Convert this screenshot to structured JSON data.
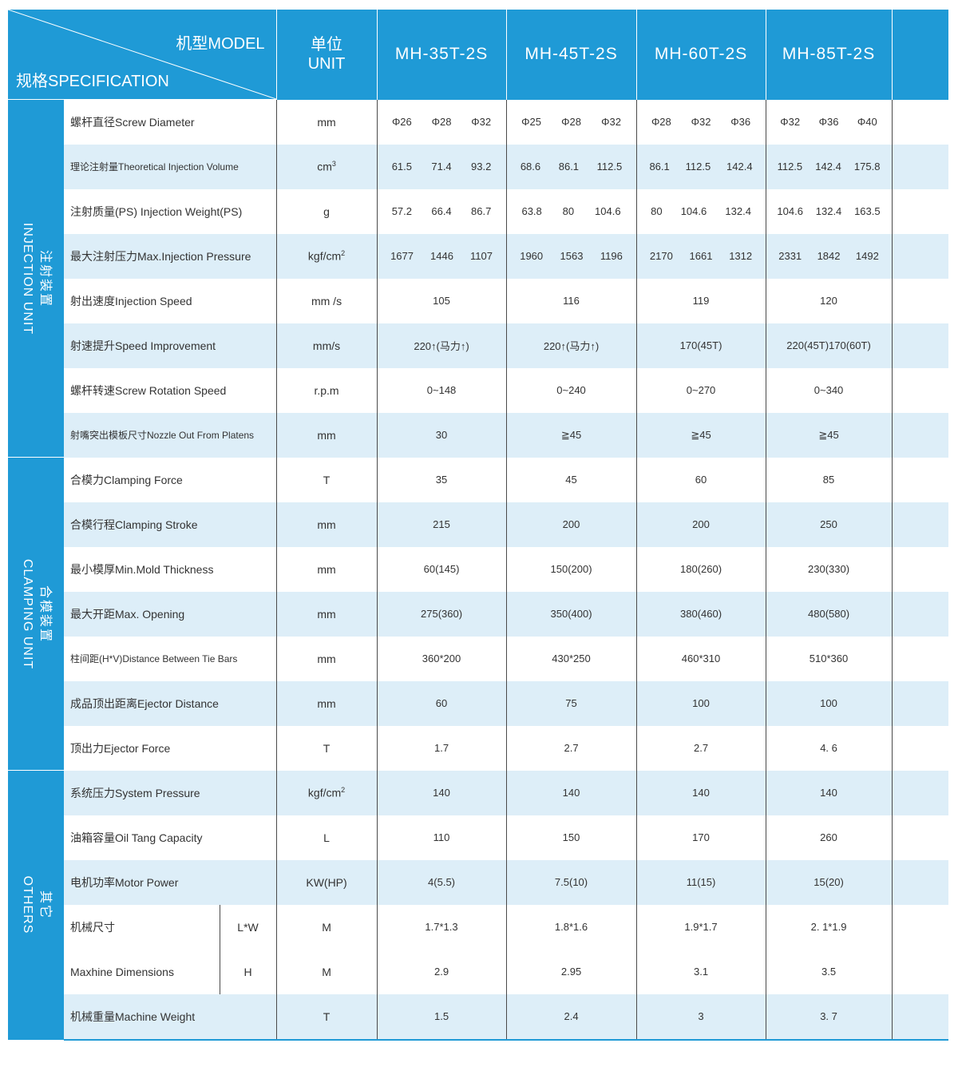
{
  "header": {
    "model_label": "机型MODEL",
    "spec_label": "规格SPECIFICATION",
    "unit_zh": "单位",
    "unit_en": "UNIT",
    "models": [
      "MH-35T-2S",
      "MH-45T-2S",
      "MH-60T-2S",
      "MH-85T-2S"
    ]
  },
  "sections": {
    "injection": {
      "zh": "注射装置",
      "en": "INJECTION UNIT"
    },
    "clamping": {
      "zh": "合模装置",
      "en": "CLAMPING UNIT"
    },
    "others": {
      "zh": "其它",
      "en": "OTHERS"
    }
  },
  "rows": {
    "screw_diameter": {
      "label": "螺杆直径Screw Diameter",
      "unit": "mm",
      "values": [
        [
          "Φ26",
          "Φ28",
          "Φ32"
        ],
        [
          "Φ25",
          "Φ28",
          "Φ32"
        ],
        [
          "Φ28",
          "Φ32",
          "Φ36"
        ],
        [
          "Φ32",
          "Φ36",
          "Φ40"
        ]
      ]
    },
    "injection_volume": {
      "label": "理论注射量Theoretical Injection Volume",
      "unit": "cm",
      "unit_sup": "3",
      "values": [
        [
          "61.5",
          "71.4",
          "93.2"
        ],
        [
          "68.6",
          "86.1",
          "112.5"
        ],
        [
          "86.1",
          "112.5",
          "142.4"
        ],
        [
          "112.5",
          "142.4",
          "175.8"
        ]
      ]
    },
    "injection_weight": {
      "label": "注射质量(PS) Injection Weight(PS)",
      "unit": "g",
      "values": [
        [
          "57.2",
          "66.4",
          "86.7"
        ],
        [
          "63.8",
          "80",
          "104.6"
        ],
        [
          "80",
          "104.6",
          "132.4"
        ],
        [
          "104.6",
          "132.4",
          "163.5"
        ]
      ]
    },
    "injection_pressure": {
      "label": "最大注射压力Max.Injection Pressure",
      "unit": "kgf/cm",
      "unit_sup": "2",
      "values": [
        [
          "1677",
          "1446",
          "1107"
        ],
        [
          "1960",
          "1563",
          "1196"
        ],
        [
          "2170",
          "1661",
          "1312"
        ],
        [
          "2331",
          "1842",
          "1492"
        ]
      ]
    },
    "injection_speed": {
      "label": "射出速度Injection Speed",
      "unit": "mm /s",
      "values": [
        "105",
        "116",
        "119",
        "120"
      ]
    },
    "speed_improvement": {
      "label": "射速提升Speed Improvement",
      "unit": "mm/s",
      "values": [
        "220↑(马力↑)",
        "220↑(马力↑)",
        "170(45T)",
        "220(45T)170(60T)"
      ]
    },
    "screw_rotation": {
      "label": "螺杆转速Screw Rotation Speed",
      "unit": "r.p.m",
      "values": [
        "0~148",
        "0~240",
        "0~270",
        "0~340"
      ]
    },
    "nozzle_out": {
      "label": "射嘴突出模板尺寸Nozzle Out From Platens",
      "unit": "mm",
      "values": [
        "30",
        "≧45",
        "≧45",
        "≧45"
      ]
    },
    "clamping_force": {
      "label": "合模力Clamping Force",
      "unit": "T",
      "values": [
        "35",
        "45",
        "60",
        "85"
      ]
    },
    "clamping_stroke": {
      "label": "合模行程Clamping Stroke",
      "unit": "mm",
      "values": [
        "215",
        "200",
        "200",
        "250"
      ]
    },
    "mold_thickness": {
      "label": "最小模厚Min.Mold Thickness",
      "unit": "mm",
      "values": [
        "60(145)",
        "150(200)",
        "180(260)",
        "230(330)"
      ]
    },
    "max_opening": {
      "label": "最大开距Max. Opening",
      "unit": "mm",
      "values": [
        "275(360)",
        "350(400)",
        "380(460)",
        "480(580)"
      ]
    },
    "tie_bars": {
      "label": "柱间距(H*V)Distance Between Tie Bars",
      "unit": "mm",
      "values": [
        "360*200",
        "430*250",
        "460*310",
        "510*360"
      ]
    },
    "ejector_distance": {
      "label": "成品顶出距离Ejector Distance",
      "unit": "mm",
      "values": [
        "60",
        "75",
        "100",
        "100"
      ]
    },
    "ejector_force": {
      "label": "顶出力Ejector Force",
      "unit": "T",
      "values": [
        "1.7",
        "2.7",
        "2.7",
        "4. 6"
      ]
    },
    "system_pressure": {
      "label": "系统压力System Pressure",
      "unit": "kgf/cm",
      "unit_sup": "2",
      "values": [
        "140",
        "140",
        "140",
        "140"
      ]
    },
    "oil_tank": {
      "label": "油箱容量Oil Tang Capacity",
      "unit": "L",
      "values": [
        "110",
        "150",
        "170",
        "260"
      ]
    },
    "motor_power": {
      "label": "电机功率Motor Power",
      "unit": "KW(HP)",
      "values": [
        "4(5.5)",
        "7.5(10)",
        "11(15)",
        "15(20)"
      ]
    },
    "dimensions": {
      "label_zh": "机械尺寸",
      "label_en": "Maxhine Dimensions",
      "lw": {
        "sub": "L*W",
        "unit": "M",
        "values": [
          "1.7*1.3",
          "1.8*1.6",
          "1.9*1.7",
          "2. 1*1.9"
        ]
      },
      "h": {
        "sub": "H",
        "unit": "M",
        "values": [
          "2.9",
          "2.95",
          "3.1",
          "3.5"
        ]
      }
    },
    "machine_weight": {
      "label": "机械重量Machine Weight",
      "unit": "T",
      "values": [
        "1.5",
        "2.4",
        "3",
        "3. 7"
      ]
    }
  }
}
